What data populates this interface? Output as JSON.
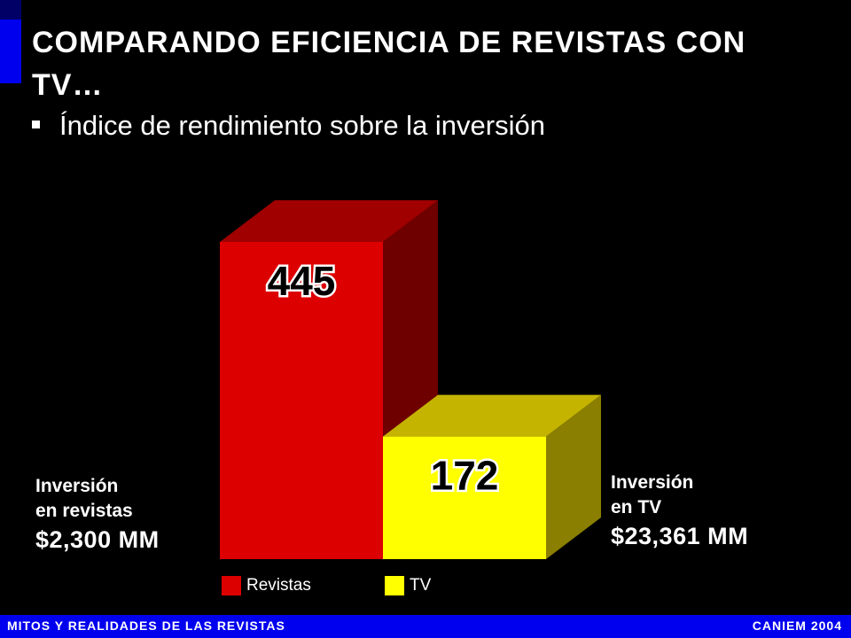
{
  "slide": {
    "title": "COMPARANDO EFICIENCIA DE REVISTAS CON TV…",
    "subtitle": "Índice de rendimiento sobre la inversión"
  },
  "investment_left": {
    "line1": "Inversión",
    "line2": "en revistas",
    "amount": "$2,300 MM"
  },
  "investment_right": {
    "line1": "Inversión",
    "line2": "en TV",
    "amount": "$23,361 MM"
  },
  "footer": {
    "left": "MITOS Y REALIDADES DE LAS REVISTAS",
    "right": "CANIEM 2004"
  },
  "colors": {
    "background": "#000000",
    "accent_blue": "#0000ee",
    "revistas_front": "#dd0000",
    "revistas_top": "#a00000",
    "revistas_side": "#6e0000",
    "tv_front": "#ffff00",
    "tv_top": "#c4b400",
    "tv_side": "#8a7f00"
  },
  "chart_data": {
    "type": "bar",
    "style": "3d",
    "categories": [
      "Revistas",
      "TV"
    ],
    "values": [
      445,
      172
    ],
    "data_labels": [
      "445",
      "172"
    ],
    "ylim": [
      0,
      500
    ],
    "grid": false,
    "legend": {
      "placement": "bottom",
      "entries": [
        "Revistas",
        "TV"
      ]
    }
  }
}
